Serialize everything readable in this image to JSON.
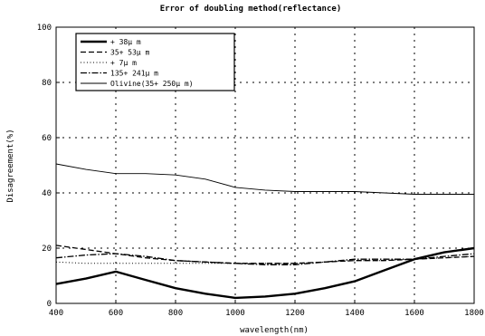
{
  "chart_data": {
    "type": "line",
    "title": "Error of doubling method(reflectance)",
    "xlabel": "wavelength(nm)",
    "ylabel": "Disagreement(%)",
    "xlim": [
      400,
      1800
    ],
    "ylim": [
      0,
      100
    ],
    "x_ticks": [
      "400",
      "600",
      "800",
      "1000",
      "1200",
      "1400",
      "1600",
      "1800"
    ],
    "y_ticks": [
      "0",
      "20",
      "40",
      "60",
      "80",
      "100"
    ],
    "grid": "dotted",
    "legend_position": "top-left",
    "series": [
      {
        "name": "+ 38µ m",
        "style": "thick-solid",
        "x": [
          400,
          500,
          600,
          700,
          800,
          900,
          1000,
          1100,
          1200,
          1300,
          1400,
          1500,
          1600,
          1700,
          1800
        ],
        "y": [
          7,
          9,
          11.5,
          8.5,
          5.5,
          3.5,
          2,
          2.5,
          3.5,
          5.5,
          8,
          12,
          16,
          18.5,
          20
        ]
      },
      {
        "name": "35+ 53µ m",
        "style": "dashed",
        "x": [
          400,
          500,
          600,
          700,
          800,
          900,
          1000,
          1100,
          1200,
          1300,
          1400,
          1500,
          1600,
          1700,
          1800
        ],
        "y": [
          21,
          19.5,
          18,
          16.5,
          15.5,
          15,
          14.5,
          14.5,
          14.5,
          15,
          15.5,
          15.5,
          16,
          16.5,
          17
        ]
      },
      {
        "name": "+ 7µ m",
        "style": "dotted",
        "x": [
          400,
          500,
          600,
          700,
          800,
          900,
          1000,
          1100,
          1200,
          1300,
          1400,
          1500,
          1600,
          1700,
          1800
        ],
        "y": [
          15,
          14.5,
          14.5,
          14.5,
          14.5,
          14.5,
          14.5,
          14.5,
          14.5,
          15,
          15.5,
          15.5,
          16,
          16.5,
          17
        ]
      },
      {
        "name": "135+ 241µ m",
        "style": "dash-dot",
        "x": [
          400,
          500,
          600,
          700,
          800,
          900,
          1000,
          1100,
          1200,
          1300,
          1400,
          1500,
          1600,
          1700,
          1800
        ],
        "y": [
          16.5,
          17.5,
          18,
          17,
          15.5,
          15,
          14.5,
          14,
          14,
          15,
          16,
          16,
          16,
          17,
          18
        ]
      },
      {
        "name": "Olivine(35+ 250µ m)",
        "style": "thin-solid",
        "x": [
          400,
          500,
          600,
          700,
          800,
          900,
          1000,
          1100,
          1200,
          1300,
          1400,
          1500,
          1600,
          1700,
          1800
        ],
        "y": [
          50.5,
          48.5,
          47,
          47,
          46.5,
          45,
          42,
          41,
          40.5,
          40.5,
          40.5,
          40,
          39.5,
          39.5,
          39.5
        ]
      }
    ]
  }
}
